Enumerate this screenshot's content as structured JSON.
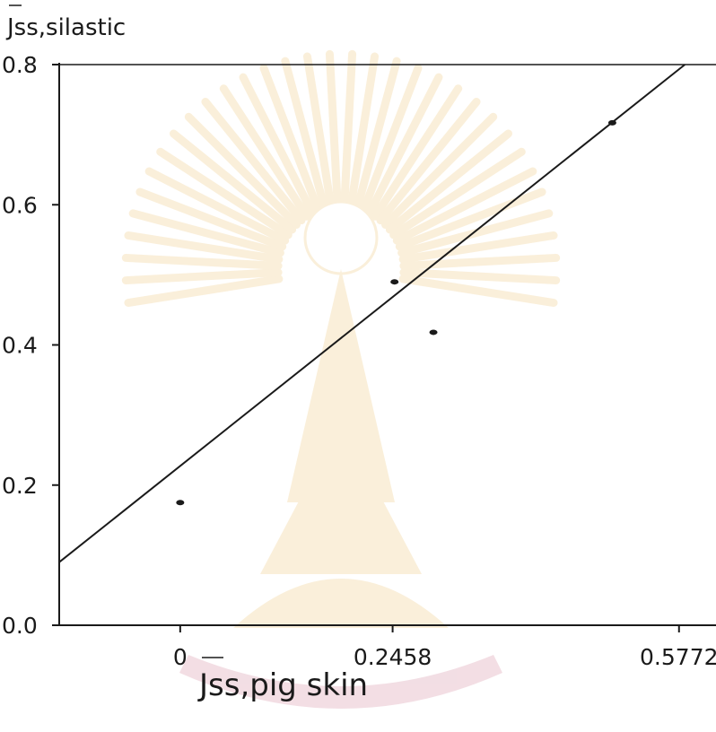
{
  "chart_data": {
    "type": "scatter",
    "title": "",
    "xlabel": "Jss,pig skin",
    "ylabel": "Jss,silastic",
    "x_ticks": [
      {
        "value": 0,
        "label": "0"
      },
      {
        "value": 0.2458,
        "label": "0.2458"
      },
      {
        "value": 0.5772,
        "label": "0.5772"
      }
    ],
    "y_ticks": [
      {
        "value": 0.0,
        "label": "0.0"
      },
      {
        "value": 0.2,
        "label": "0.2"
      },
      {
        "value": 0.4,
        "label": "0.4"
      },
      {
        "value": 0.6,
        "label": "0.6"
      },
      {
        "value": 0.8,
        "label": "0.8"
      }
    ],
    "xlim": [
      -0.14,
      0.62
    ],
    "ylim": [
      0.0,
      0.8
    ],
    "points": [
      {
        "x": 0.0,
        "y": 0.175
      },
      {
        "x": 0.248,
        "y": 0.49
      },
      {
        "x": 0.293,
        "y": 0.418
      },
      {
        "x": 0.5,
        "y": 0.717
      }
    ],
    "fit_line": {
      "x1": -0.14,
      "y1": 0.09,
      "x2": 0.584,
      "y2": 0.8
    },
    "grid": false,
    "colors": {
      "ink": "#1a1a1a",
      "watermark": "#e9b85a",
      "watermark_accent": "#c96b86"
    }
  }
}
